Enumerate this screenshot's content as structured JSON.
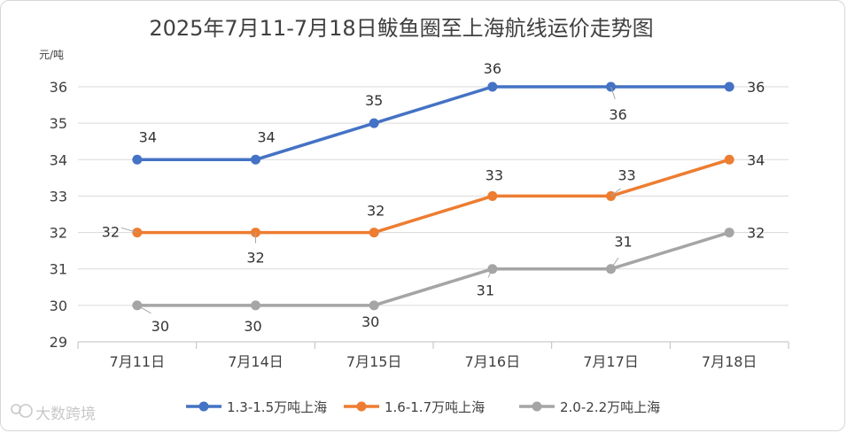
{
  "chart_data": {
    "type": "line",
    "title": "2025年7月11-7月18日鲅鱼圈至上海航线运价走势图",
    "ylabel": "元/吨",
    "categories": [
      "7月11日",
      "7月14日",
      "7月15日",
      "7月16日",
      "7月17日",
      "7月18日"
    ],
    "ylim": [
      29,
      36
    ],
    "yticks": [
      29,
      30,
      31,
      32,
      33,
      34,
      35,
      36
    ],
    "grid": "horizontal",
    "legend": "bottom",
    "series": [
      {
        "name": "1.3-1.5万吨上海",
        "color": "#4472C4",
        "values": [
          34,
          34,
          35,
          36,
          36,
          36
        ]
      },
      {
        "name": "1.6-1.7万吨上海",
        "color": "#ED7D31",
        "values": [
          32,
          32,
          32,
          33,
          33,
          34
        ]
      },
      {
        "name": "2.0-2.2万吨上海",
        "color": "#A5A5A5",
        "values": [
          30,
          30,
          30,
          31,
          31,
          32
        ]
      }
    ]
  },
  "watermark": {
    "text": "大数跨境"
  }
}
